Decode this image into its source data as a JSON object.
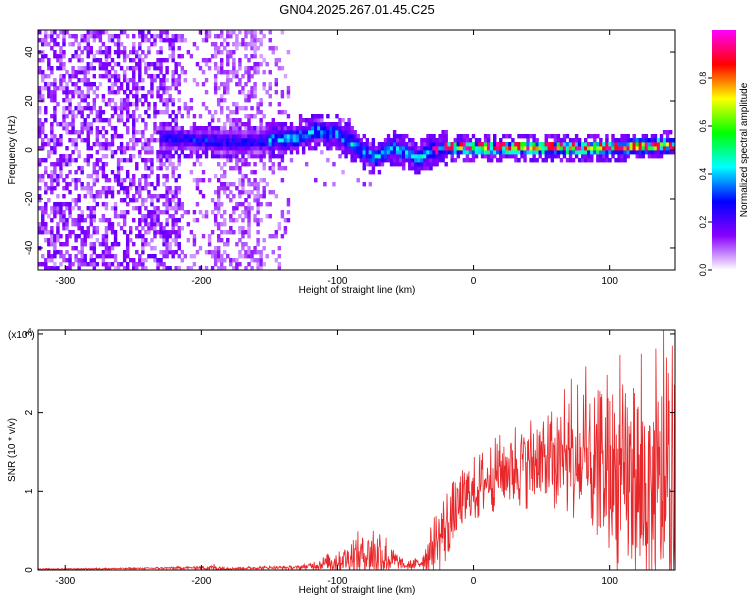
{
  "title": "GN04.2025.267.01.45.C25",
  "colors": {
    "snr_line": "#e8272a",
    "axis": "#000000",
    "background": "#ffffff"
  },
  "chart_data": [
    {
      "type": "heatmap",
      "name": "spectrogram",
      "xlabel": "Height of straight line (km)",
      "ylabel": "Frequency (Hz)",
      "xlim": [
        -320,
        148
      ],
      "ylim": [
        -49,
        49
      ],
      "x_ticks": [
        -300,
        -200,
        -100,
        0,
        100
      ],
      "x_tick_labels": [
        "-300",
        "-200",
        "-100",
        "0",
        "100"
      ],
      "y_ticks": [
        -40,
        -20,
        0,
        20,
        40
      ],
      "y_tick_labels": [
        "-40",
        "-20",
        "0",
        "20",
        "40"
      ],
      "ridge_center_hz": [
        [
          -225,
          5
        ],
        [
          -200,
          4
        ],
        [
          -170,
          3
        ],
        [
          -150,
          4
        ],
        [
          -130,
          5
        ],
        [
          -115,
          8
        ],
        [
          -100,
          7
        ],
        [
          -90,
          3
        ],
        [
          -80,
          -1
        ],
        [
          -72,
          -3
        ],
        [
          -60,
          1
        ],
        [
          -50,
          -1
        ],
        [
          -40,
          -3
        ],
        [
          -30,
          0
        ],
        [
          -20,
          1
        ],
        [
          0,
          1
        ],
        [
          50,
          1
        ],
        [
          100,
          1
        ],
        [
          140,
          2
        ]
      ],
      "description_level": "intensity peaks near 0 Hz from about -25 km to 148 km",
      "colorbar": {
        "label": "Normalized spectral amplitude",
        "range": [
          0.0,
          1.0
        ],
        "ticks": [
          0.0,
          0.2,
          0.4,
          0.6,
          0.8
        ],
        "tick_labels": [
          "0.0",
          "0.2",
          "0.4",
          "0.6",
          "0.8"
        ],
        "stops": [
          "#ffffff",
          "#8800ff",
          "#0000ff",
          "#00ffff",
          "#00ff00",
          "#ffff00",
          "#ff0000",
          "#ff00ff"
        ]
      }
    },
    {
      "type": "line",
      "name": "snr",
      "xlabel": "Height of straight line (km)",
      "ylabel": "SNR (10 * v/v)",
      "scale_label": "(x10",
      "scale_exponent": "4",
      "xlim": [
        -320,
        148
      ],
      "ylim": [
        0,
        3.05
      ],
      "x_ticks": [
        -300,
        -200,
        -100,
        0,
        100
      ],
      "x_tick_labels": [
        "-300",
        "-200",
        "-100",
        "0",
        "100"
      ],
      "y_ticks": [
        0,
        1,
        2,
        3
      ],
      "y_tick_labels": [
        "0",
        "1",
        "2",
        "3"
      ],
      "envelope": {
        "x": [
          -320,
          -250,
          -200,
          -190,
          -180,
          -150,
          -130,
          -120,
          -110,
          -100,
          -90,
          -80,
          -70,
          -60,
          -50,
          -40,
          -30,
          -20,
          -10,
          0,
          10,
          20,
          30,
          40,
          50,
          60,
          70,
          80,
          90,
          100,
          110,
          120,
          130,
          140,
          148
        ],
        "baseline": [
          0.01,
          0.02,
          0.03,
          0.03,
          0.02,
          0.03,
          0.03,
          0.05,
          0.08,
          0.12,
          0.16,
          0.2,
          0.22,
          0.12,
          0.05,
          0.08,
          0.28,
          0.55,
          0.8,
          1.0,
          1.15,
          1.25,
          1.32,
          1.38,
          1.38,
          1.35,
          1.3,
          1.25,
          1.2,
          1.15,
          1.1,
          1.0,
          0.95,
          0.9,
          0.85
        ],
        "spread": [
          0.01,
          0.01,
          0.02,
          0.06,
          0.02,
          0.02,
          0.03,
          0.05,
          0.1,
          0.18,
          0.28,
          0.35,
          0.45,
          0.2,
          0.05,
          0.1,
          0.4,
          0.5,
          0.45,
          0.45,
          0.45,
          0.5,
          0.6,
          0.6,
          0.65,
          0.7,
          0.8,
          0.95,
          1.1,
          1.2,
          1.3,
          1.4,
          1.5,
          1.55,
          1.6
        ]
      }
    }
  ]
}
